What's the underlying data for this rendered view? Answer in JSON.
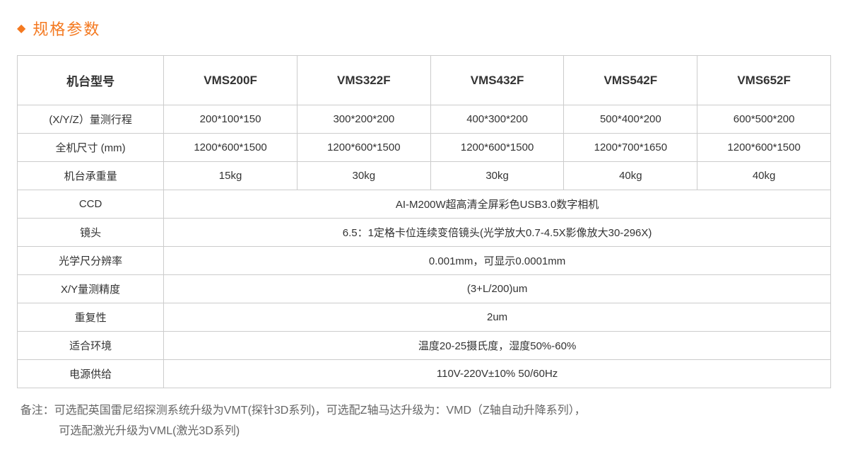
{
  "header": {
    "bullet": "◆",
    "title": "规格参数"
  },
  "table": {
    "header_row": {
      "label": "机台型号",
      "cols": [
        "VMS200F",
        "VMS322F",
        "VMS432F",
        "VMS542F",
        "VMS652F"
      ]
    },
    "data_rows": [
      {
        "label": "(X/Y/Z）量测行程",
        "cells": [
          "200*100*150",
          "300*200*200",
          "400*300*200",
          "500*400*200",
          "600*500*200"
        ]
      },
      {
        "label": "全机尺寸 (mm)",
        "cells": [
          "1200*600*1500",
          "1200*600*1500",
          "1200*600*1500",
          "1200*700*1650",
          "1200*600*1500"
        ]
      },
      {
        "label": "机台承重量",
        "cells": [
          "15kg",
          "30kg",
          "30kg",
          "40kg",
          "40kg"
        ]
      }
    ],
    "spanned_rows": [
      {
        "label": "CCD",
        "value": "AI-M200W超高清全屏彩色USB3.0数字相机"
      },
      {
        "label": "镜头",
        "value": "6.5：1定格卡位连续变倍镜头(光学放大0.7-4.5X影像放大30-296X)"
      },
      {
        "label": "光学尺分辨率",
        "value": "0.001mm，可显示0.0001mm"
      },
      {
        "label": "X/Y量测精度",
        "value": "(3+L/200)um"
      },
      {
        "label": "重复性",
        "value": "2um"
      },
      {
        "label": "适合环境",
        "value": "温度20-25摄氏度，湿度50%-60%"
      },
      {
        "label": "电源供给",
        "value": "110V-220V±10%  50/60Hz"
      }
    ]
  },
  "footnote": {
    "line1": "备注：可选配英国雷尼绍探测系统升级为VMT(探针3D系列)，可选配Z轴马达升级为：VMD（Z轴自动升降系列），",
    "line2": "可选配激光升级为VML(激光3D系列)"
  },
  "styling": {
    "accent_color": "#f47920",
    "border_color": "#cccccc",
    "text_color": "#333333",
    "footnote_color": "#666666",
    "background_color": "#ffffff",
    "title_fontsize": 22,
    "header_fontsize": 17,
    "cell_fontsize": 15,
    "footnote_fontsize": 16,
    "col_label_width_pct": 18,
    "num_model_cols": 5
  }
}
